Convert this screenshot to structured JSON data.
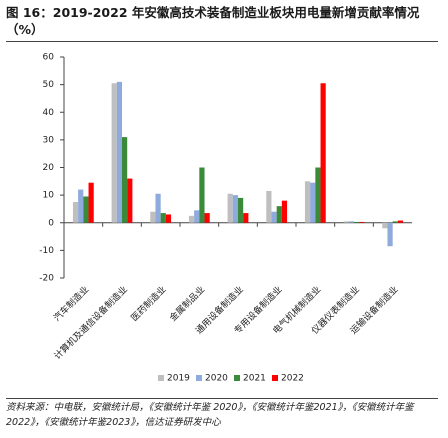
{
  "chart_data": {
    "type": "bar",
    "title": "图 16：2019-2022 年安徽高技术装备制造业板块用电量新增贡献率情况（%）",
    "categories": [
      "汽车制造业",
      "计算机及通信设备制造业",
      "医药制造业",
      "金属制品业",
      "通用设备制造业",
      "专用设备制造业",
      "电气机械制造业",
      "仪器仪表制造业",
      "运输设备制造业"
    ],
    "series": [
      {
        "name": "2019",
        "color": "#bfbfbf",
        "values": [
          7.5,
          50.5,
          4,
          2.5,
          10.5,
          11.5,
          15,
          0.5,
          -2
        ]
      },
      {
        "name": "2020",
        "color": "#8faadc",
        "values": [
          12,
          51,
          10.5,
          4.5,
          10,
          4,
          14.5,
          0.5,
          -8.5
        ]
      },
      {
        "name": "2021",
        "color": "#3a8a3a",
        "values": [
          9.5,
          31,
          3.5,
          20,
          9,
          6,
          20,
          0.3,
          0.5
        ]
      },
      {
        "name": "2022",
        "color": "#ff0000",
        "values": [
          14.5,
          16,
          3,
          3.5,
          3.5,
          8,
          50.5,
          0.3,
          0.8
        ]
      }
    ],
    "ylim": [
      -20,
      60
    ],
    "yticks": [
      -20,
      -10,
      0,
      10,
      20,
      30,
      40,
      50,
      60
    ],
    "grid": false,
    "legend": "bottom",
    "source": "资料来源：中电联，安徽统计局，《安徽统计年鉴 2020》，《安徽统计年鉴2021》，《安徽统计年鉴2022》，《安徽统计年鉴2023》，信达证券研发中心"
  }
}
